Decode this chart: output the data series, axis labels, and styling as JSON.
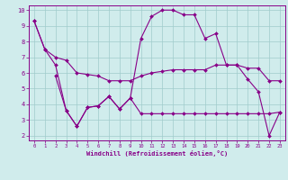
{
  "xlabel": "Windchill (Refroidissement éolien,°C)",
  "x_ticks": [
    0,
    1,
    2,
    3,
    4,
    5,
    6,
    7,
    8,
    9,
    10,
    11,
    12,
    13,
    14,
    15,
    16,
    17,
    18,
    19,
    20,
    21,
    22,
    23
  ],
  "y_ticks": [
    2,
    3,
    4,
    5,
    6,
    7,
    8,
    9,
    10
  ],
  "xlim": [
    -0.5,
    23.5
  ],
  "ylim": [
    1.7,
    10.3
  ],
  "bg_color": "#d0ecec",
  "grid_color": "#a0cccc",
  "line_color": "#880088",
  "line1_x": [
    0,
    1,
    2,
    3,
    4,
    5,
    6,
    7,
    8,
    9,
    10,
    11,
    12,
    13,
    14,
    15,
    16,
    17,
    18,
    19,
    20,
    21,
    22,
    23
  ],
  "line1_y": [
    9.3,
    7.5,
    7.0,
    6.8,
    6.0,
    5.9,
    5.8,
    5.5,
    5.5,
    5.5,
    5.8,
    6.0,
    6.1,
    6.2,
    6.2,
    6.2,
    6.2,
    6.5,
    6.5,
    6.5,
    6.3,
    6.3,
    5.5,
    5.5
  ],
  "line2_x": [
    0,
    1,
    2,
    3,
    4,
    5,
    6,
    7,
    8,
    9,
    10,
    11,
    12,
    13,
    14,
    15,
    16,
    17,
    18,
    19,
    20,
    21,
    22,
    23
  ],
  "line2_y": [
    9.3,
    7.5,
    6.5,
    3.6,
    2.6,
    3.8,
    3.9,
    4.5,
    3.7,
    4.4,
    8.2,
    9.6,
    10.0,
    10.0,
    9.7,
    9.7,
    8.2,
    8.5,
    6.5,
    6.5,
    5.6,
    4.8,
    2.0,
    3.5
  ],
  "line3_x": [
    2,
    3,
    4,
    5,
    6,
    7,
    8,
    9,
    10,
    11,
    12,
    13,
    14,
    15,
    16,
    17,
    18,
    19,
    20,
    21,
    22,
    23
  ],
  "line3_y": [
    5.8,
    3.6,
    2.6,
    3.8,
    3.9,
    4.5,
    3.7,
    4.4,
    3.4,
    3.4,
    3.4,
    3.4,
    3.4,
    3.4,
    3.4,
    3.4,
    3.4,
    3.4,
    3.4,
    3.4,
    3.4,
    3.5
  ],
  "markersize": 2.0,
  "linewidth": 0.8
}
